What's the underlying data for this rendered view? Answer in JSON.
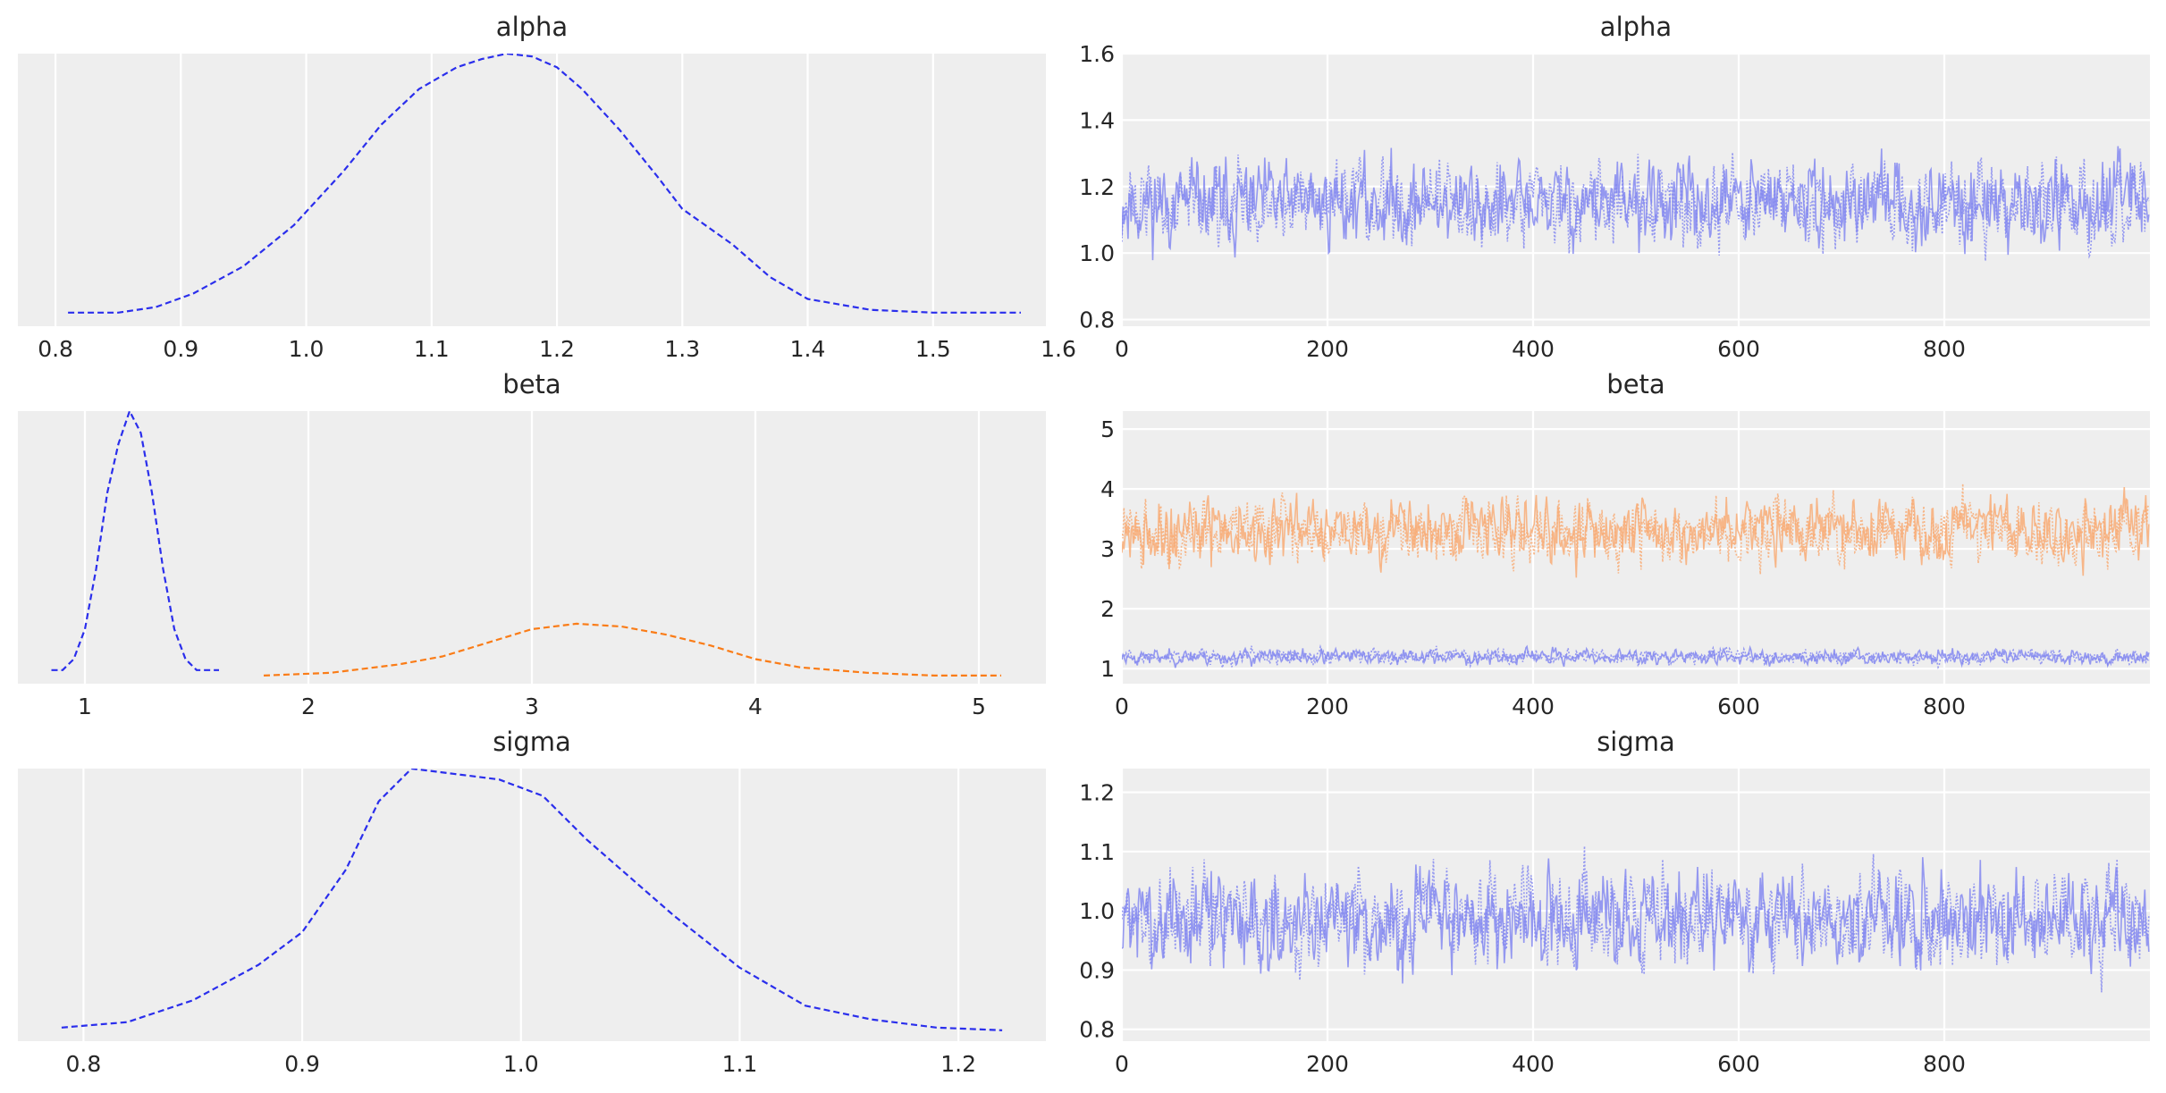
{
  "chart_data": [
    {
      "type": "line",
      "title": "alpha",
      "xlabel": "",
      "ylabel": "",
      "xlim": [
        0.77,
        1.59
      ],
      "ylim": [
        0,
        1
      ],
      "grid": true,
      "xticks": [
        0.8,
        0.9,
        1.0,
        1.1,
        1.2,
        1.3,
        1.4,
        1.5,
        1.6
      ],
      "xtick_labels": [
        "0.8",
        "0.9",
        "1.0",
        "1.1",
        "1.2",
        "1.3",
        "1.4",
        "1.5",
        "1.6"
      ],
      "series": [
        {
          "color": "#2a2eec",
          "x": [
            0.81,
            0.85,
            0.88,
            0.91,
            0.95,
            0.99,
            1.03,
            1.06,
            1.09,
            1.12,
            1.14,
            1.16,
            1.18,
            1.2,
            1.22,
            1.25,
            1.28,
            1.3,
            1.34,
            1.37,
            1.4,
            1.45,
            1.5,
            1.57
          ],
          "y": [
            0.05,
            0.05,
            0.07,
            0.12,
            0.22,
            0.37,
            0.57,
            0.74,
            0.87,
            0.95,
            0.98,
            1.0,
            0.99,
            0.95,
            0.87,
            0.72,
            0.55,
            0.43,
            0.3,
            0.18,
            0.1,
            0.06,
            0.05,
            0.05
          ]
        }
      ]
    },
    {
      "type": "line",
      "title": "alpha",
      "xlabel": "",
      "ylabel": "",
      "xlim": [
        0,
        1000
      ],
      "ylim": [
        0.78,
        1.6
      ],
      "grid": true,
      "xticks": [
        0,
        200,
        400,
        600,
        800
      ],
      "xtick_labels": [
        "0",
        "200",
        "400",
        "600",
        "800"
      ],
      "yticks": [
        0.8,
        1.0,
        1.2,
        1.4,
        1.6
      ],
      "ytick_labels": [
        "0.8",
        "1.0",
        "1.2",
        "1.4",
        "1.6"
      ],
      "series": [
        {
          "color": "#8488f0",
          "samples": 1000,
          "center": 1.15,
          "spread": 0.1,
          "min": 0.82,
          "max": 1.57,
          "seed": 11
        },
        {
          "color": "#8488f0",
          "samples": 1000,
          "center": 1.15,
          "spread": 0.1,
          "min": 0.82,
          "max": 1.45,
          "seed": 12
        }
      ]
    },
    {
      "type": "line",
      "title": "beta",
      "xlabel": "",
      "ylabel": "",
      "xlim": [
        0.7,
        5.3
      ],
      "ylim": [
        0,
        1
      ],
      "grid": true,
      "xticks": [
        1,
        2,
        3,
        4,
        5
      ],
      "xtick_labels": [
        "1",
        "2",
        "3",
        "4",
        "5"
      ],
      "series": [
        {
          "color": "#2a2eec",
          "x": [
            0.85,
            0.9,
            0.95,
            1.0,
            1.05,
            1.1,
            1.15,
            1.2,
            1.25,
            1.3,
            1.35,
            1.4,
            1.45,
            1.5,
            1.6
          ],
          "y": [
            0.05,
            0.05,
            0.09,
            0.2,
            0.42,
            0.7,
            0.88,
            1.0,
            0.92,
            0.7,
            0.42,
            0.2,
            0.09,
            0.05,
            0.05
          ]
        },
        {
          "color": "#fa7c17",
          "x": [
            1.8,
            2.1,
            2.4,
            2.6,
            2.8,
            3.0,
            3.2,
            3.4,
            3.6,
            3.8,
            4.0,
            4.2,
            4.5,
            4.8,
            5.1
          ],
          "y": [
            0.03,
            0.04,
            0.07,
            0.1,
            0.15,
            0.2,
            0.22,
            0.21,
            0.18,
            0.14,
            0.09,
            0.06,
            0.04,
            0.03,
            0.03
          ]
        }
      ]
    },
    {
      "type": "line",
      "title": "beta",
      "xlabel": "",
      "ylabel": "",
      "xlim": [
        0,
        1000
      ],
      "ylim": [
        0.75,
        5.3
      ],
      "grid": true,
      "xticks": [
        0,
        200,
        400,
        600,
        800
      ],
      "xtick_labels": [
        "0",
        "200",
        "400",
        "600",
        "800"
      ],
      "yticks": [
        1,
        2,
        3,
        4,
        5
      ],
      "ytick_labels": [
        "1",
        "2",
        "3",
        "4",
        "5"
      ],
      "series": [
        {
          "color": "#f8ac76",
          "samples": 1000,
          "center": 3.3,
          "spread": 0.42,
          "min": 1.8,
          "max": 4.8,
          "seed": 21
        },
        {
          "color": "#f8ac76",
          "samples": 1000,
          "center": 3.3,
          "spread": 0.42,
          "min": 1.8,
          "max": 5.1,
          "seed": 22
        },
        {
          "color": "#8488f0",
          "samples": 1000,
          "center": 1.2,
          "spread": 0.1,
          "min": 0.85,
          "max": 1.55,
          "seed": 23
        },
        {
          "color": "#8488f0",
          "samples": 1000,
          "center": 1.2,
          "spread": 0.1,
          "min": 0.85,
          "max": 1.55,
          "seed": 24
        }
      ]
    },
    {
      "type": "line",
      "title": "sigma",
      "xlabel": "",
      "ylabel": "",
      "xlim": [
        0.77,
        1.24
      ],
      "ylim": [
        0,
        1
      ],
      "grid": true,
      "xticks": [
        0.8,
        0.9,
        1.0,
        1.1,
        1.2
      ],
      "xtick_labels": [
        "0.8",
        "0.9",
        "1.0",
        "1.1",
        "1.2"
      ],
      "series": [
        {
          "color": "#2a2eec",
          "x": [
            0.79,
            0.82,
            0.85,
            0.88,
            0.9,
            0.92,
            0.935,
            0.95,
            0.97,
            0.99,
            1.01,
            1.03,
            1.05,
            1.07,
            1.1,
            1.13,
            1.16,
            1.19,
            1.22
          ],
          "y": [
            0.05,
            0.07,
            0.15,
            0.28,
            0.4,
            0.63,
            0.88,
            1.0,
            0.98,
            0.96,
            0.9,
            0.74,
            0.6,
            0.46,
            0.27,
            0.13,
            0.08,
            0.05,
            0.04
          ]
        }
      ]
    },
    {
      "type": "line",
      "title": "sigma",
      "xlabel": "",
      "ylabel": "",
      "xlim": [
        0,
        1000
      ],
      "ylim": [
        0.78,
        1.24
      ],
      "grid": true,
      "xticks": [
        0,
        200,
        400,
        600,
        800
      ],
      "xtick_labels": [
        "0",
        "200",
        "400",
        "600",
        "800"
      ],
      "yticks": [
        0.8,
        0.9,
        1.0,
        1.1,
        1.2
      ],
      "ytick_labels": [
        "0.8",
        "0.9",
        "1.0",
        "1.1",
        "1.2"
      ],
      "series": [
        {
          "color": "#8488f0",
          "samples": 1000,
          "center": 0.985,
          "spread": 0.065,
          "min": 0.79,
          "max": 1.21,
          "seed": 31
        },
        {
          "color": "#8488f0",
          "samples": 1000,
          "center": 0.985,
          "spread": 0.065,
          "min": 0.79,
          "max": 1.2,
          "seed": 32
        }
      ]
    }
  ]
}
